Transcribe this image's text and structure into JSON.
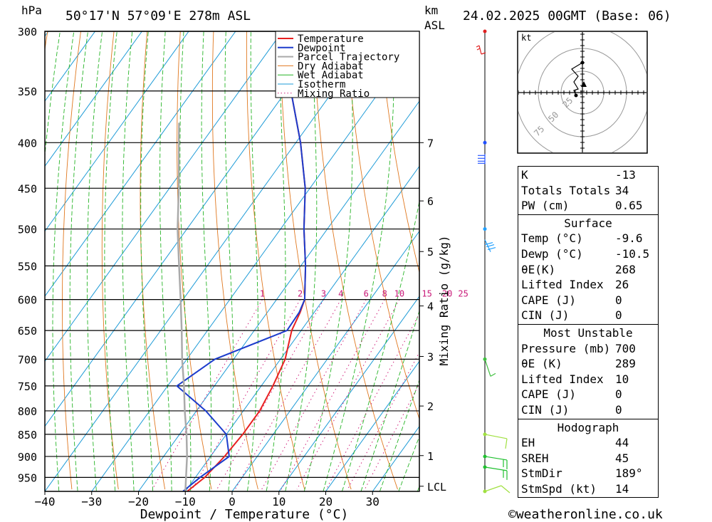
{
  "header": {
    "y_unit": "hPa",
    "location": "50°17'N  57°09'E  278m  ASL",
    "km_label": "km",
    "asl_label": "ASL",
    "datetime": "24.02.2025  00GMT  (Base: 06)"
  },
  "chart_data": {
    "type": "line",
    "title": "",
    "xlabel": "Dewpoint / Temperature (°C)",
    "ylabel": "hPa",
    "right_axis_label": "Mixing Ratio (g/kg)",
    "x_ticks": [
      -40,
      -30,
      -20,
      -10,
      0,
      10,
      20,
      30
    ],
    "x_range": [
      -40,
      40
    ],
    "pressure_ticks": [
      300,
      350,
      400,
      450,
      500,
      550,
      600,
      650,
      700,
      750,
      800,
      850,
      900,
      950
    ],
    "p_range": [
      300,
      985
    ],
    "km_ticks": [
      {
        "label": "7",
        "p": 400
      },
      {
        "label": "6",
        "p": 465
      },
      {
        "label": "5",
        "p": 530
      },
      {
        "label": "4",
        "p": 610
      },
      {
        "label": "3",
        "p": 695
      },
      {
        "label": "2",
        "p": 790
      },
      {
        "label": "1",
        "p": 898
      },
      {
        "label": "LCL",
        "p": 972
      }
    ],
    "mixing_ratio_labels": [
      "1",
      "2",
      "3",
      "4",
      "6",
      "8",
      "10",
      "15",
      "20",
      "25"
    ],
    "legend": [
      "Temperature",
      "Dewpoint",
      "Parcel Trajectory",
      "Dry Adiabat",
      "Wet Adiabat",
      "Isotherm",
      "Mixing Ratio"
    ],
    "series": [
      {
        "name": "Temperature",
        "color": "#e82020",
        "points": [
          [
            985,
            -9.6
          ],
          [
            950,
            -8
          ],
          [
            900,
            -7
          ],
          [
            850,
            -6.5
          ],
          [
            800,
            -6.5
          ],
          [
            750,
            -7.5
          ],
          [
            700,
            -9
          ],
          [
            650,
            -12
          ],
          [
            620,
            -13
          ],
          [
            600,
            -14
          ],
          [
            550,
            -19
          ],
          [
            500,
            -25
          ],
          [
            450,
            -31
          ],
          [
            400,
            -39
          ],
          [
            350,
            -49
          ],
          [
            300,
            -58
          ]
        ]
      },
      {
        "name": "Dewpoint",
        "color": "#1c3ccc",
        "points": [
          [
            985,
            -10.5
          ],
          [
            950,
            -9
          ],
          [
            900,
            -6
          ],
          [
            850,
            -10
          ],
          [
            800,
            -18
          ],
          [
            750,
            -28
          ],
          [
            700,
            -24
          ],
          [
            650,
            -13
          ],
          [
            620,
            -13.2
          ],
          [
            600,
            -14
          ],
          [
            550,
            -19
          ],
          [
            500,
            -25
          ],
          [
            450,
            -31
          ],
          [
            400,
            -39
          ],
          [
            350,
            -49
          ],
          [
            300,
            -58
          ]
        ]
      },
      {
        "name": "Parcel Trajectory",
        "color": "#aaaaaa",
        "points": [
          [
            985,
            -10
          ],
          [
            950,
            -12
          ],
          [
            900,
            -15
          ],
          [
            850,
            -18.5
          ],
          [
            800,
            -22.5
          ],
          [
            750,
            -26.5
          ],
          [
            700,
            -31
          ],
          [
            650,
            -35.5
          ],
          [
            600,
            -40.5
          ],
          [
            550,
            -46
          ],
          [
            500,
            -52
          ],
          [
            450,
            -58
          ],
          [
            400,
            -65
          ],
          [
            380,
            -68
          ]
        ]
      }
    ],
    "wind_profile": [
      {
        "p": 300,
        "color": "#e02020"
      },
      {
        "p": 400,
        "color": "#2050ff"
      },
      {
        "p": 500,
        "color": "#20a0ff"
      },
      {
        "p": 700,
        "color": "#40c040"
      },
      {
        "p": 850,
        "color": "#a0e040"
      },
      {
        "p": 900,
        "color": "#20c030"
      },
      {
        "p": 925,
        "color": "#20c030"
      },
      {
        "p": 985,
        "color": "#a0e040"
      }
    ],
    "hodograph": {
      "unit": "kt",
      "ring_labels": [
        "25",
        "50",
        "75"
      ]
    }
  },
  "indices": {
    "block1": [
      {
        "label": "K",
        "value": "-13"
      },
      {
        "label": "Totals Totals",
        "value": "34"
      },
      {
        "label": "PW (cm)",
        "value": "0.65"
      }
    ],
    "surface": {
      "title": "Surface",
      "rows": [
        {
          "label": "Temp (°C)",
          "value": "-9.6"
        },
        {
          "label": "Dewp (°C)",
          "value": "-10.5"
        },
        {
          "label": "θE(K)",
          "value": "268"
        },
        {
          "label": "Lifted Index",
          "value": "26"
        },
        {
          "label": "CAPE (J)",
          "value": "0"
        },
        {
          "label": "CIN (J)",
          "value": "0"
        }
      ]
    },
    "most_unstable": {
      "title": "Most Unstable",
      "rows": [
        {
          "label": "Pressure (mb)",
          "value": "700"
        },
        {
          "label": "θE (K)",
          "value": "289"
        },
        {
          "label": "Lifted Index",
          "value": "10"
        },
        {
          "label": "CAPE (J)",
          "value": "0"
        },
        {
          "label": "CIN (J)",
          "value": "0"
        }
      ]
    },
    "hodograph": {
      "title": "Hodograph",
      "rows": [
        {
          "label": "EH",
          "value": "44"
        },
        {
          "label": "SREH",
          "value": "45"
        },
        {
          "label": "StmDir",
          "value": "189°"
        },
        {
          "label": "StmSpd (kt)",
          "value": "14"
        }
      ]
    }
  },
  "footer": {
    "credit": "©weatheronline.co.uk"
  }
}
